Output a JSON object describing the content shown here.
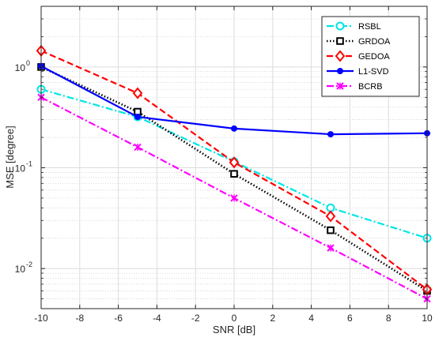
{
  "chart_data": {
    "type": "line",
    "xlabel": "SNR [dB]",
    "ylabel": "MSE [degree]",
    "xlim": [
      -10,
      10
    ],
    "ylim": [
      0.004,
      4
    ],
    "yscale": "log",
    "grid": true,
    "legend_position": "top-right",
    "x_ticks": [
      "-10",
      "-8",
      "-6",
      "-4",
      "-2",
      "0",
      "2",
      "4",
      "6",
      "8",
      "10"
    ],
    "y_ticks": [
      {
        "value": 0.01,
        "base": "10",
        "exp": "-2"
      },
      {
        "value": 0.1,
        "base": "10",
        "exp": "-1"
      },
      {
        "value": 1,
        "base": "10",
        "exp": "0"
      }
    ],
    "x": [
      -10,
      -5,
      0,
      5,
      10
    ],
    "series": [
      {
        "name": "RSBL",
        "color": "#00e5e5",
        "dash": "dashdot",
        "marker": "circle",
        "values": [
          0.6,
          0.32,
          0.115,
          0.04,
          0.02
        ]
      },
      {
        "name": "GRDOA",
        "color": "#000000",
        "dash": "dotted",
        "marker": "square",
        "values": [
          1.0,
          0.36,
          0.087,
          0.024,
          0.006
        ]
      },
      {
        "name": "GEDOA",
        "color": "#ff0000",
        "dash": "dashed",
        "marker": "diamond",
        "values": [
          1.45,
          0.55,
          0.113,
          0.033,
          0.0062
        ]
      },
      {
        "name": "L1-SVD",
        "color": "#0000ff",
        "dash": "solid",
        "marker": "dot",
        "values": [
          1.02,
          0.32,
          0.245,
          0.215,
          0.22
        ]
      },
      {
        "name": "BCRB",
        "color": "#ff00ff",
        "dash": "dashdot",
        "marker": "cross",
        "values": [
          0.5,
          0.16,
          0.05,
          0.016,
          0.005
        ]
      }
    ]
  }
}
